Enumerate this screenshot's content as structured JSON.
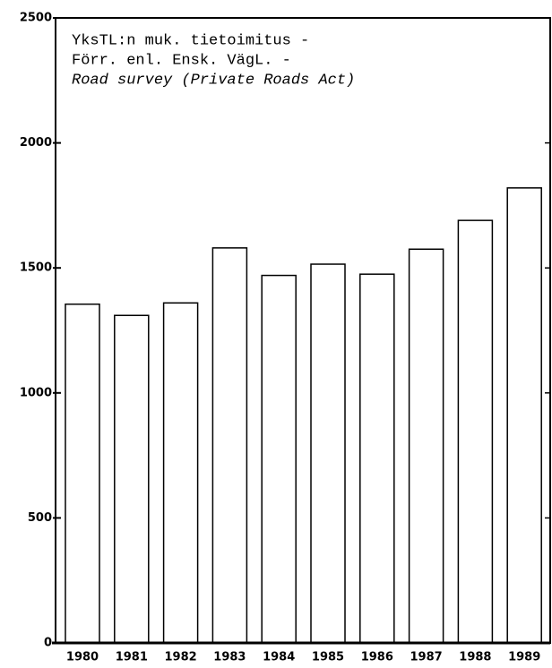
{
  "chart_data": {
    "type": "bar",
    "title_lines": [
      "YksTL:n muk. tietoimitus -",
      "Förr. enl. Ensk. VägL. -",
      "Road survey (Private Roads Act)"
    ],
    "categories": [
      "1980",
      "1981",
      "1982",
      "1983",
      "1984",
      "1985",
      "1986",
      "1987",
      "1988",
      "1989"
    ],
    "values": [
      1355,
      1310,
      1360,
      1580,
      1470,
      1515,
      1475,
      1575,
      1690,
      1820
    ],
    "color": "#ffffff",
    "edge_color": "#000000",
    "ylim": [
      0,
      2500
    ],
    "yticks": [
      0,
      500,
      1000,
      1500,
      2000,
      2500
    ],
    "grid": false
  }
}
